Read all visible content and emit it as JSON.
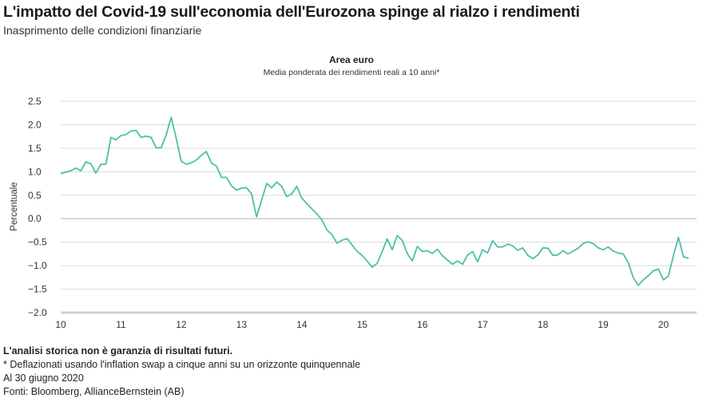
{
  "header": {
    "title": "L'impatto del Covid-19 sull'economia dell'Eurozona spinge al rialzo i rendimenti",
    "subtitle": "Inasprimento delle condizioni finanziarie"
  },
  "chart_data": {
    "type": "line",
    "title": "Area euro",
    "subtitle": "Media ponderata dei rendimenti reali a 10 anni*",
    "xlabel": "",
    "ylabel": "Percentuale",
    "xlim": [
      10,
      20.55
    ],
    "ylim": [
      -2.0,
      2.5
    ],
    "x_start": 10,
    "x_step": 0.08333,
    "x_ticks": [
      "10",
      "11",
      "12",
      "13",
      "14",
      "15",
      "16",
      "17",
      "18",
      "19",
      "20"
    ],
    "y_ticks": [
      "2.5",
      "2.0",
      "1.5",
      "1.0",
      "0.5",
      "0.0",
      "−0.5",
      "−1.0",
      "−1.5",
      "−2.0"
    ],
    "grid": true,
    "line_color": "#4dbfa8",
    "series": [
      {
        "name": "Area euro",
        "values": [
          0.96,
          0.99,
          1.02,
          1.08,
          1.02,
          1.21,
          1.17,
          0.97,
          1.16,
          1.16,
          1.73,
          1.68,
          1.77,
          1.79,
          1.87,
          1.88,
          1.73,
          1.76,
          1.73,
          1.51,
          1.51,
          1.78,
          2.16,
          1.71,
          1.22,
          1.16,
          1.19,
          1.25,
          1.35,
          1.43,
          1.19,
          1.12,
          0.88,
          0.88,
          0.7,
          0.61,
          0.65,
          0.66,
          0.53,
          0.04,
          0.4,
          0.75,
          0.66,
          0.78,
          0.69,
          0.47,
          0.53,
          0.69,
          0.44,
          0.32,
          0.21,
          0.1,
          -0.02,
          -0.24,
          -0.34,
          -0.52,
          -0.46,
          -0.42,
          -0.56,
          -0.69,
          -0.78,
          -0.9,
          -1.03,
          -0.95,
          -0.7,
          -0.43,
          -0.66,
          -0.36,
          -0.46,
          -0.74,
          -0.9,
          -0.59,
          -0.7,
          -0.68,
          -0.74,
          -0.65,
          -0.79,
          -0.88,
          -0.97,
          -0.9,
          -0.97,
          -0.77,
          -0.7,
          -0.92,
          -0.66,
          -0.73,
          -0.47,
          -0.6,
          -0.6,
          -0.54,
          -0.58,
          -0.67,
          -0.62,
          -0.78,
          -0.85,
          -0.77,
          -0.62,
          -0.63,
          -0.78,
          -0.77,
          -0.68,
          -0.75,
          -0.69,
          -0.63,
          -0.53,
          -0.49,
          -0.53,
          -0.62,
          -0.66,
          -0.6,
          -0.69,
          -0.73,
          -0.75,
          -0.94,
          -1.25,
          -1.42,
          -1.3,
          -1.21,
          -1.11,
          -1.07,
          -1.3,
          -1.22,
          -0.78,
          -0.4,
          -0.81,
          -0.84
        ]
      }
    ]
  },
  "footer": {
    "disclaimer": "L'analisi storica non è garanzia di risultati futuri.",
    "note": "* Deflazionati usando l'inflation swap a cinque anni su un orizzonte quinquennale",
    "date": "Al 30 giugno 2020",
    "sources": "Fonti: Bloomberg, AllianceBernstein (AB)"
  }
}
